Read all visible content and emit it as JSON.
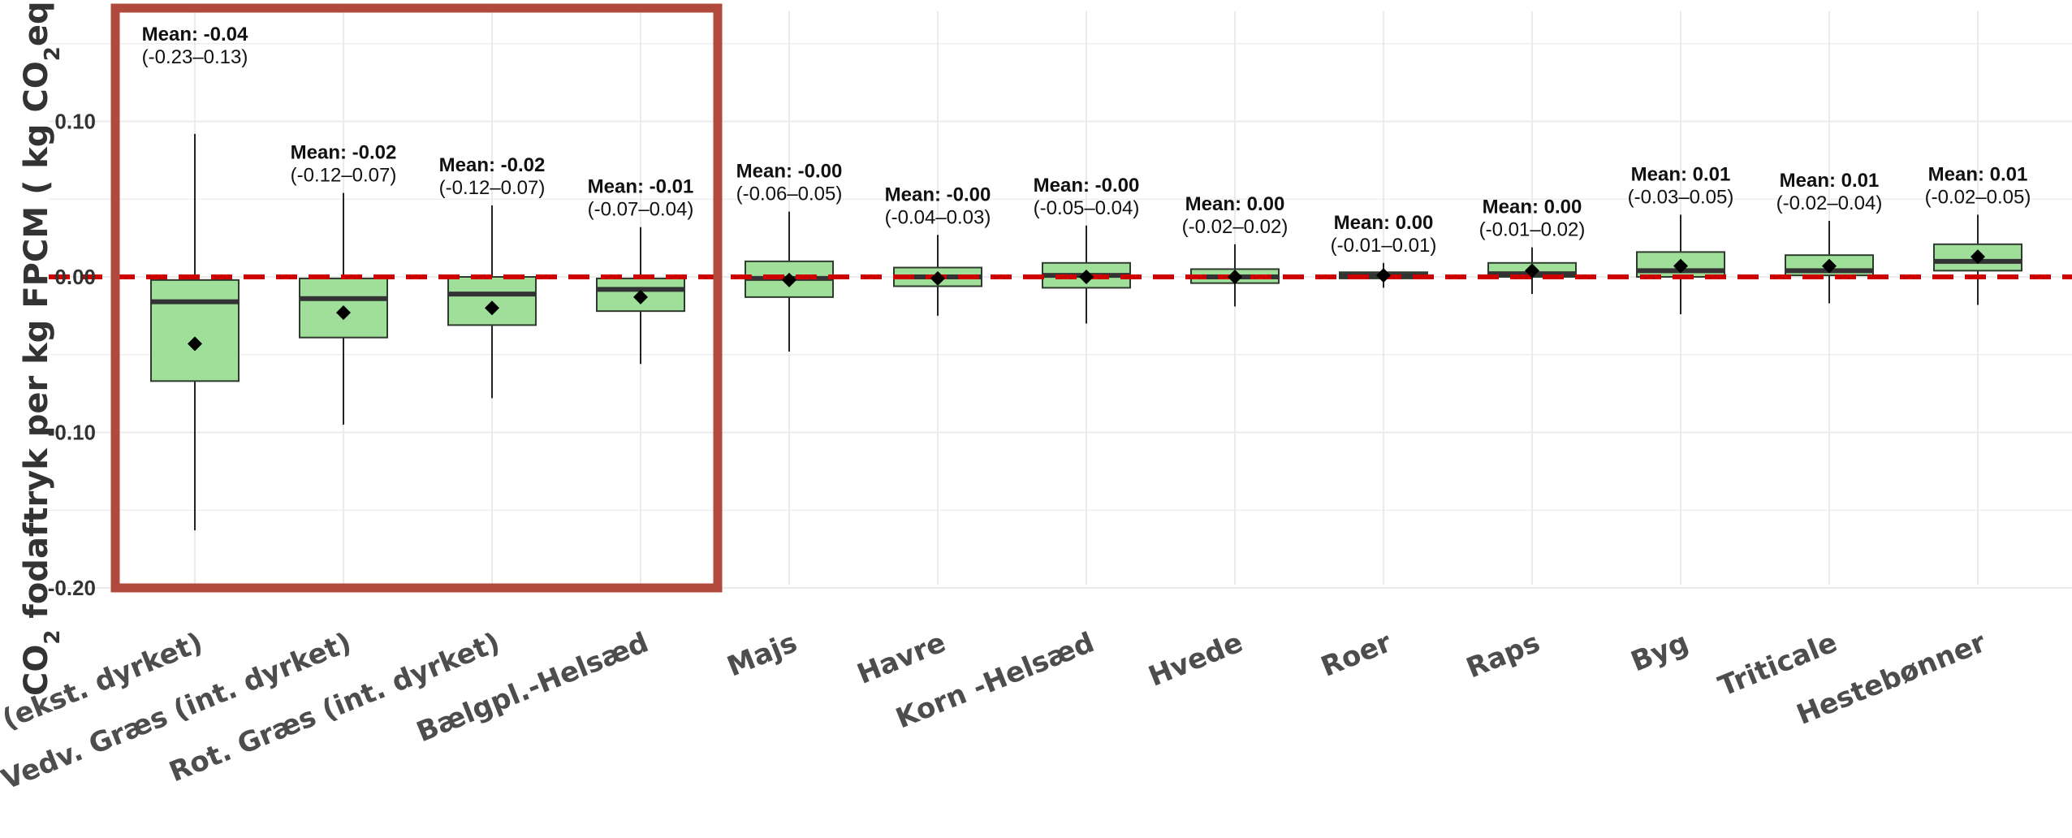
{
  "chart_data": {
    "type": "boxplot",
    "title": "",
    "ylabel_parts": [
      "CO",
      "2",
      " fodaftryk per kg FPCM ( kg CO",
      "2",
      "eq)"
    ],
    "ylim": [
      -0.2,
      0.15
    ],
    "yticks": [
      {
        "value": 0.1,
        "label": "0.10"
      },
      {
        "value": 0.0,
        "label": "0.00"
      },
      {
        "value": -0.1,
        "label": "-0.10"
      },
      {
        "value": -0.2,
        "label": "-0.20"
      }
    ],
    "grid": true,
    "reference_line": {
      "value": 0.0,
      "style": "dashed",
      "color": "#cc0000"
    },
    "colors": {
      "box_fill": "#9fdf9a",
      "box_stroke": "#2f3b2f",
      "median": "#333333",
      "highlight_frame": "#b04a3d",
      "grid": "#ebebeb"
    },
    "highlight_frame": {
      "covers_categories": [
        "Vedv. Græs (ekst. dyrket)",
        "Vedv. Græs (int. dyrket)",
        "Rot. Græs (int. dyrket)",
        "Bælgpl.-Helsæd"
      ]
    },
    "categories": [
      "Vedv. Græs (ekst. dyrket)",
      "Vedv. Græs (int. dyrket)",
      "Rot. Græs (int. dyrket)",
      "Bælgpl.-Helsæd",
      "Majs",
      "Havre",
      "Korn -Helsæd",
      "Hvede",
      "Roer",
      "Raps",
      "Byg",
      "Triticale",
      "Hestebønner"
    ],
    "boxes": [
      {
        "whisker_low": -0.163,
        "q1": -0.067,
        "median": -0.016,
        "q3": -0.002,
        "whisker_high": 0.092,
        "mean": -0.043,
        "mean_label": "Mean: -0.04",
        "ci_label": "(-0.23–0.13)"
      },
      {
        "whisker_low": -0.095,
        "q1": -0.039,
        "median": -0.014,
        "q3": -0.001,
        "whisker_high": 0.054,
        "mean": -0.023,
        "mean_label": "Mean: -0.02",
        "ci_label": "(-0.12–0.07)"
      },
      {
        "whisker_low": -0.078,
        "q1": -0.031,
        "median": -0.011,
        "q3": 0.0,
        "whisker_high": 0.046,
        "mean": -0.02,
        "mean_label": "Mean: -0.02",
        "ci_label": "(-0.12–0.07)"
      },
      {
        "whisker_low": -0.056,
        "q1": -0.022,
        "median": -0.008,
        "q3": -0.001,
        "whisker_high": 0.032,
        "mean": -0.013,
        "mean_label": "Mean: -0.01",
        "ci_label": "(-0.07–0.04)"
      },
      {
        "whisker_low": -0.048,
        "q1": -0.013,
        "median": -0.001,
        "q3": 0.01,
        "whisker_high": 0.042,
        "mean": -0.002,
        "mean_label": "Mean: -0.00",
        "ci_label": "(-0.06–0.05)"
      },
      {
        "whisker_low": -0.025,
        "q1": -0.006,
        "median": 0.0,
        "q3": 0.006,
        "whisker_high": 0.027,
        "mean": -0.001,
        "mean_label": "Mean: -0.00",
        "ci_label": "(-0.04–0.03)"
      },
      {
        "whisker_low": -0.03,
        "q1": -0.007,
        "median": 0.001,
        "q3": 0.009,
        "whisker_high": 0.033,
        "mean": 0.0,
        "mean_label": "Mean: -0.00",
        "ci_label": "(-0.05–0.04)"
      },
      {
        "whisker_low": -0.019,
        "q1": -0.004,
        "median": 0.0,
        "q3": 0.005,
        "whisker_high": 0.021,
        "mean": 0.0,
        "mean_label": "Mean: 0.00",
        "ci_label": "(-0.02–0.02)"
      },
      {
        "whisker_low": -0.007,
        "q1": -0.001,
        "median": 0.001,
        "q3": 0.003,
        "whisker_high": 0.009,
        "mean": 0.001,
        "mean_label": "Mean: 0.00",
        "ci_label": "(-0.01–0.01)"
      },
      {
        "whisker_low": -0.011,
        "q1": 0.0,
        "median": 0.002,
        "q3": 0.009,
        "whisker_high": 0.019,
        "mean": 0.004,
        "mean_label": "Mean: 0.00",
        "ci_label": "(-0.01–0.02)"
      },
      {
        "whisker_low": -0.024,
        "q1": 0.0,
        "median": 0.004,
        "q3": 0.016,
        "whisker_high": 0.04,
        "mean": 0.007,
        "mean_label": "Mean: 0.01",
        "ci_label": "(-0.03–0.05)"
      },
      {
        "whisker_low": -0.017,
        "q1": 0.001,
        "median": 0.004,
        "q3": 0.014,
        "whisker_high": 0.036,
        "mean": 0.007,
        "mean_label": "Mean: 0.01",
        "ci_label": "(-0.02–0.04)"
      },
      {
        "whisker_low": -0.018,
        "q1": 0.004,
        "median": 0.01,
        "q3": 0.021,
        "whisker_high": 0.04,
        "mean": 0.013,
        "mean_label": "Mean: 0.01",
        "ci_label": "(-0.02–0.05)"
      }
    ]
  }
}
